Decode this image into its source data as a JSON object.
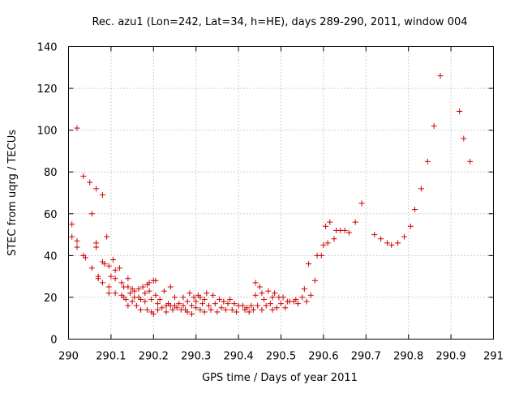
{
  "chart_data": {
    "type": "scatter",
    "title": "Rec. azu1 (Lon=242, Lat=34, h=HE), days 289-290, 2011, window 004",
    "xlabel": "GPS time / Days of year 2011",
    "ylabel": "STEC from uqrg / TECUs",
    "xlim": [
      290,
      291
    ],
    "ylim": [
      0,
      140
    ],
    "xticks": [
      "290",
      "290.1",
      "290.2",
      "290.3",
      "290.4",
      "290.5",
      "290.6",
      "290.7",
      "290.8",
      "290.9",
      "291"
    ],
    "yticks": [
      "0",
      "20",
      "40",
      "60",
      "80",
      "100",
      "120",
      "140"
    ],
    "grid": true,
    "marker": "+",
    "color": "#cc0000",
    "points": [
      [
        290.008,
        55
      ],
      [
        290.008,
        49
      ],
      [
        290.02,
        47
      ],
      [
        290.02,
        44
      ],
      [
        290.02,
        101
      ],
      [
        290.035,
        78
      ],
      [
        290.035,
        40
      ],
      [
        290.04,
        39
      ],
      [
        290.05,
        75
      ],
      [
        290.055,
        60
      ],
      [
        290.055,
        34
      ],
      [
        290.065,
        72
      ],
      [
        290.065,
        46
      ],
      [
        290.065,
        44
      ],
      [
        290.07,
        30
      ],
      [
        290.07,
        29
      ],
      [
        290.08,
        69
      ],
      [
        290.08,
        37
      ],
      [
        290.08,
        27
      ],
      [
        290.085,
        36
      ],
      [
        290.09,
        49
      ],
      [
        290.095,
        35
      ],
      [
        290.095,
        25
      ],
      [
        290.095,
        22
      ],
      [
        290.1,
        30
      ],
      [
        290.105,
        38
      ],
      [
        290.11,
        33
      ],
      [
        290.11,
        29
      ],
      [
        290.11,
        22
      ],
      [
        290.12,
        34
      ],
      [
        290.125,
        27
      ],
      [
        290.125,
        21
      ],
      [
        290.13,
        25
      ],
      [
        290.13,
        20
      ],
      [
        290.135,
        19
      ],
      [
        290.14,
        29
      ],
      [
        290.14,
        25
      ],
      [
        290.14,
        16
      ],
      [
        290.145,
        22
      ],
      [
        290.15,
        24
      ],
      [
        290.15,
        18
      ],
      [
        290.155,
        23
      ],
      [
        290.155,
        20
      ],
      [
        290.16,
        16
      ],
      [
        290.165,
        24
      ],
      [
        290.165,
        20
      ],
      [
        290.17,
        19
      ],
      [
        290.17,
        14
      ],
      [
        290.175,
        25
      ],
      [
        290.18,
        22
      ],
      [
        290.18,
        18
      ],
      [
        290.185,
        26
      ],
      [
        290.185,
        14
      ],
      [
        290.19,
        27
      ],
      [
        290.19,
        23
      ],
      [
        290.195,
        19
      ],
      [
        290.195,
        13
      ],
      [
        290.2,
        28
      ],
      [
        290.2,
        12
      ],
      [
        290.205,
        28
      ],
      [
        290.205,
        21
      ],
      [
        290.21,
        17
      ],
      [
        290.21,
        14
      ],
      [
        290.215,
        19
      ],
      [
        290.22,
        15
      ],
      [
        290.225,
        23
      ],
      [
        290.23,
        16
      ],
      [
        290.23,
        13
      ],
      [
        290.235,
        17
      ],
      [
        290.24,
        25
      ],
      [
        290.24,
        16
      ],
      [
        290.245,
        14
      ],
      [
        290.25,
        20
      ],
      [
        290.25,
        16
      ],
      [
        290.255,
        15
      ],
      [
        290.26,
        17
      ],
      [
        290.265,
        14
      ],
      [
        290.27,
        20
      ],
      [
        290.27,
        16
      ],
      [
        290.275,
        14
      ],
      [
        290.28,
        18
      ],
      [
        290.28,
        13
      ],
      [
        290.285,
        22
      ],
      [
        290.29,
        16
      ],
      [
        290.29,
        12
      ],
      [
        290.295,
        20
      ],
      [
        290.3,
        18
      ],
      [
        290.3,
        15
      ],
      [
        290.305,
        21
      ],
      [
        290.31,
        14
      ],
      [
        290.31,
        20
      ],
      [
        290.315,
        17
      ],
      [
        290.32,
        19
      ],
      [
        290.32,
        13
      ],
      [
        290.325,
        22
      ],
      [
        290.33,
        16
      ],
      [
        290.335,
        14
      ],
      [
        290.34,
        21
      ],
      [
        290.345,
        17
      ],
      [
        290.35,
        13
      ],
      [
        290.355,
        19
      ],
      [
        290.36,
        15
      ],
      [
        290.365,
        18
      ],
      [
        290.37,
        14
      ],
      [
        290.375,
        17
      ],
      [
        290.38,
        19
      ],
      [
        290.385,
        14
      ],
      [
        290.39,
        17
      ],
      [
        290.395,
        13
      ],
      [
        290.4,
        16
      ],
      [
        290.41,
        16
      ],
      [
        290.415,
        14
      ],
      [
        290.42,
        15
      ],
      [
        290.425,
        13
      ],
      [
        290.43,
        16
      ],
      [
        290.435,
        14
      ],
      [
        290.44,
        27
      ],
      [
        290.44,
        21
      ],
      [
        290.445,
        16
      ],
      [
        290.45,
        25
      ],
      [
        290.455,
        22
      ],
      [
        290.455,
        14
      ],
      [
        290.46,
        19
      ],
      [
        290.465,
        16
      ],
      [
        290.47,
        23
      ],
      [
        290.475,
        17
      ],
      [
        290.48,
        14
      ],
      [
        290.48,
        20
      ],
      [
        290.485,
        22
      ],
      [
        290.49,
        15
      ],
      [
        290.495,
        20
      ],
      [
        290.5,
        17
      ],
      [
        290.505,
        20
      ],
      [
        290.51,
        15
      ],
      [
        290.515,
        18
      ],
      [
        290.52,
        18
      ],
      [
        290.53,
        18
      ],
      [
        290.535,
        19
      ],
      [
        290.54,
        17
      ],
      [
        290.55,
        20
      ],
      [
        290.555,
        24
      ],
      [
        290.56,
        18
      ],
      [
        290.565,
        36
      ],
      [
        290.57,
        21
      ],
      [
        290.58,
        28
      ],
      [
        290.585,
        40
      ],
      [
        290.595,
        40
      ],
      [
        290.6,
        45
      ],
      [
        290.605,
        54
      ],
      [
        290.61,
        46
      ],
      [
        290.615,
        56
      ],
      [
        290.625,
        48
      ],
      [
        290.63,
        52
      ],
      [
        290.64,
        52
      ],
      [
        290.65,
        52
      ],
      [
        290.66,
        51
      ],
      [
        290.675,
        56
      ],
      [
        290.69,
        65
      ],
      [
        290.72,
        50
      ],
      [
        290.735,
        48
      ],
      [
        290.75,
        46
      ],
      [
        290.76,
        45
      ],
      [
        290.775,
        46
      ],
      [
        290.79,
        49
      ],
      [
        290.805,
        54
      ],
      [
        290.815,
        62
      ],
      [
        290.83,
        72
      ],
      [
        290.845,
        85
      ],
      [
        290.86,
        102
      ],
      [
        290.875,
        126
      ],
      [
        290.92,
        109
      ],
      [
        290.93,
        96
      ],
      [
        290.945,
        85
      ]
    ]
  }
}
